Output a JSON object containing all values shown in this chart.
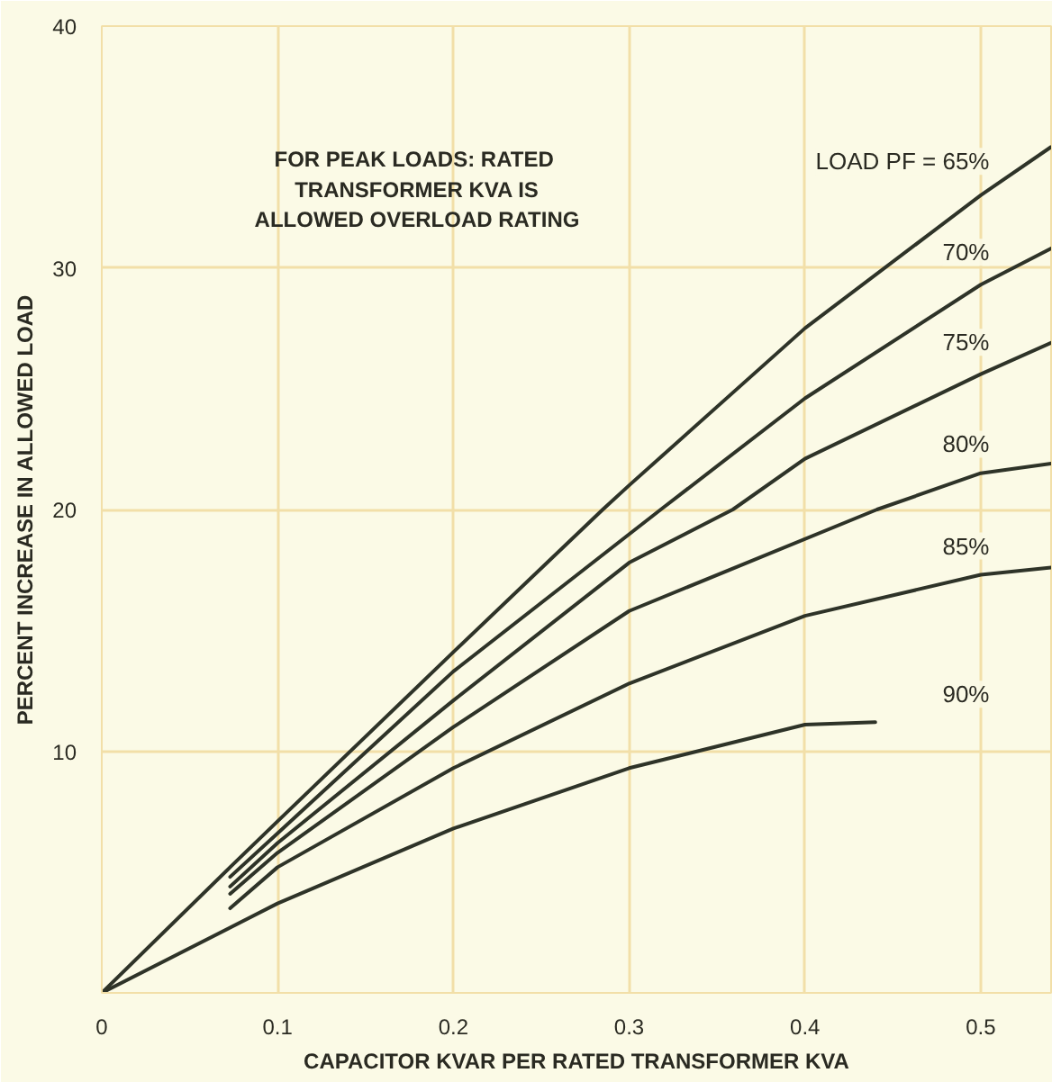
{
  "chart_data": {
    "type": "line",
    "xlabel": "CAPACITOR KVAR PER RATED TRANSFORMER KVA",
    "ylabel": "PERCENT INCREASE IN ALLOWED LOAD",
    "annotations": [
      "FOR PEAK LOADS:  RATED\nTRANSFORMER KVA IS\nALLOWED OVERLOAD RATING"
    ],
    "xlim": [
      0,
      0.54
    ],
    "ylim": [
      0,
      40
    ],
    "xticks": [
      0,
      0.1,
      0.2,
      0.3,
      0.4,
      0.5
    ],
    "yticks": [
      {
        "value": 0,
        "label": null
      },
      10,
      20,
      30,
      40
    ],
    "grid": true,
    "marker": "none",
    "line_style": "solid",
    "series": [
      {
        "name": "LOAD PF = 65%",
        "color": "#2e3328",
        "x": [
          0,
          0.073,
          0.1,
          0.2,
          0.285,
          0.3,
          0.4,
          0.5,
          0.54
        ],
        "values": [
          0,
          5.2,
          7.1,
          14.1,
          20,
          21.0,
          27.5,
          33,
          35
        ]
      },
      {
        "name": "70%",
        "color": "#2e3328",
        "x": [
          0.073,
          0.1,
          0.2,
          0.318,
          0.4,
          0.5,
          0.54
        ],
        "values": [
          4.8,
          6.6,
          13.3,
          20,
          24.6,
          29.3,
          30.8
        ]
      },
      {
        "name": "75%",
        "color": "#2e3328",
        "x": [
          0.073,
          0.1,
          0.2,
          0.3,
          0.359,
          0.4,
          0.5,
          0.54
        ],
        "values": [
          4.4,
          6.2,
          12.1,
          17.8,
          20,
          22.1,
          25.6,
          26.9
        ]
      },
      {
        "name": "80%",
        "color": "#2e3328",
        "x": [
          0.073,
          0.1,
          0.2,
          0.3,
          0.441,
          0.5,
          0.54
        ],
        "values": [
          4.1,
          5.8,
          11.0,
          15.8,
          20,
          21.5,
          21.9
        ]
      },
      {
        "name": "85%",
        "color": "#2e3328",
        "x": [
          0.073,
          0.1,
          0.2,
          0.3,
          0.4,
          0.5,
          0.54
        ],
        "values": [
          3.5,
          5.2,
          9.3,
          12.8,
          15.6,
          17.3,
          17.6
        ]
      },
      {
        "name": "90%",
        "color": "#2e3328",
        "x": [
          0,
          0.1,
          0.2,
          0.3,
          0.4,
          0.44
        ],
        "values": [
          0,
          3.7,
          6.8,
          9.3,
          11.1,
          11.2
        ]
      }
    ]
  }
}
